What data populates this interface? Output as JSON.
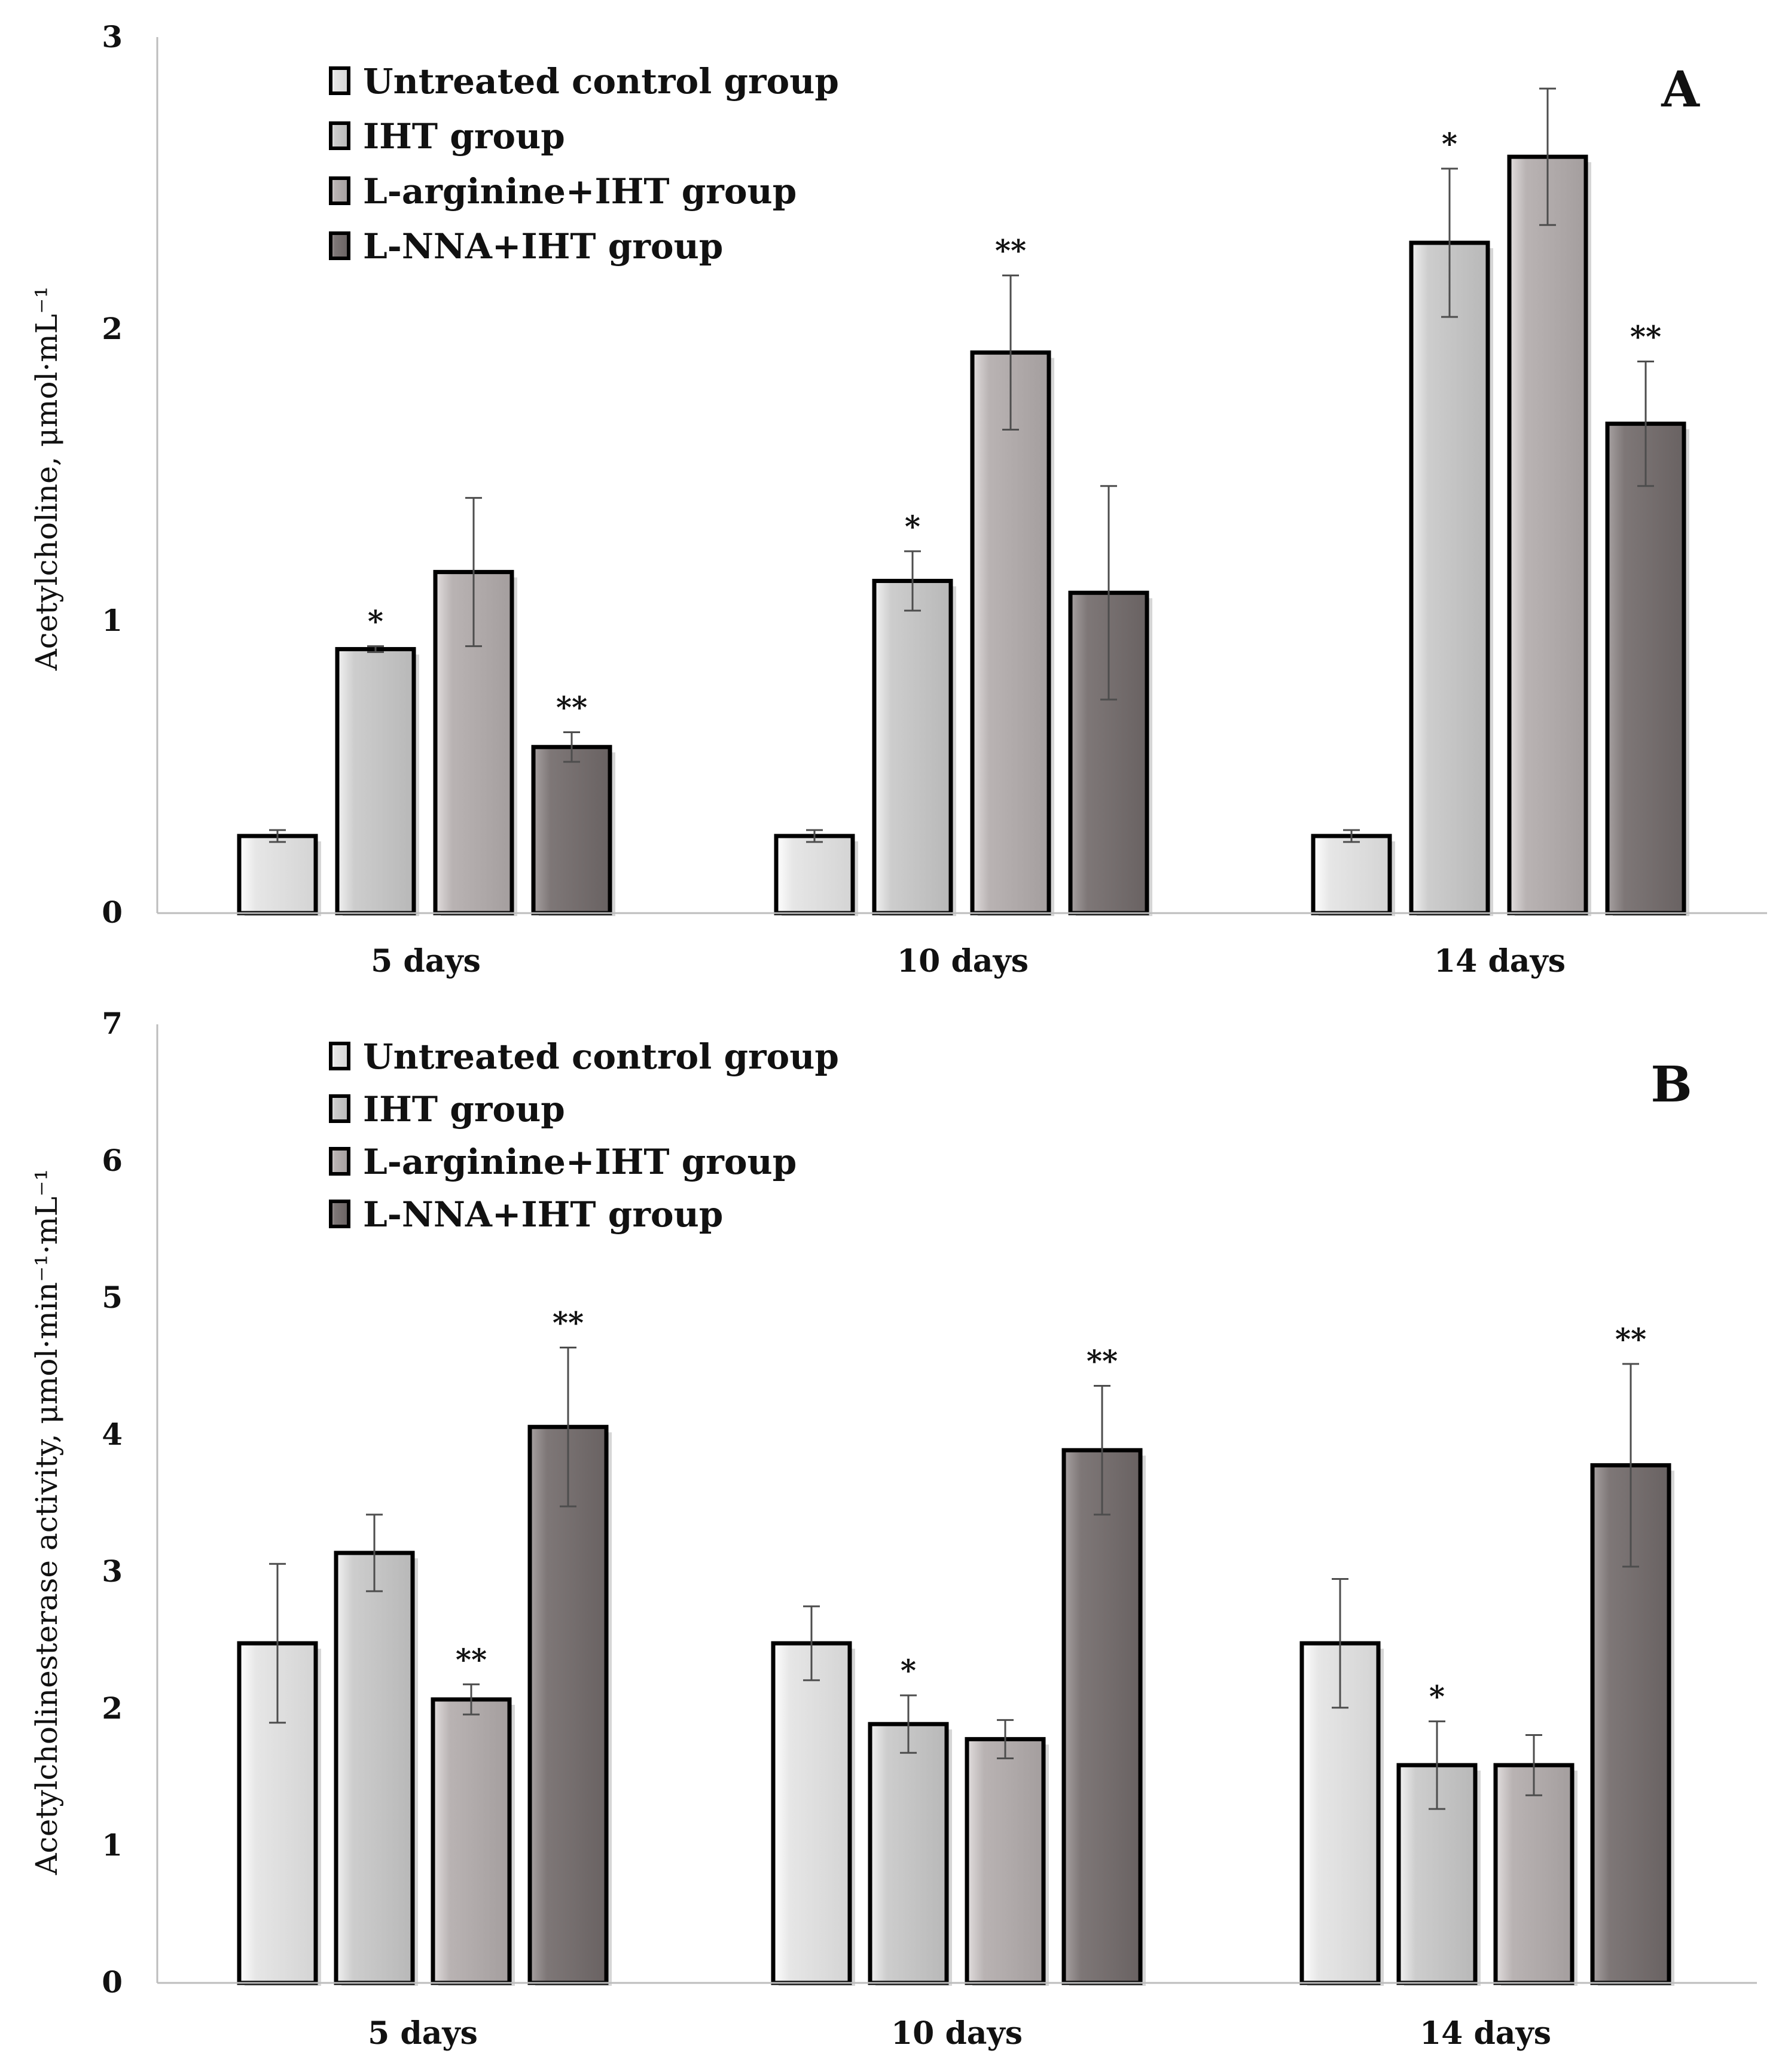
{
  "colors": {
    "untreated": "#e6e6e6",
    "iht": "#cdcdcd",
    "larginine": "#b9b3b3",
    "lnna": "#7e7777",
    "border": "#000000",
    "axis": "#bdbdbd"
  },
  "chart_data": [
    {
      "type": "bar",
      "panel_label": "A",
      "ylabel": "Acetylcholine, μmol·mL⁻¹",
      "ylim": [
        0,
        3
      ],
      "yticks": [
        "0",
        "1",
        "2",
        "3"
      ],
      "categories": [
        "5 days",
        "10 days",
        "14 days"
      ],
      "legend": [
        "Untreated control group",
        "IHT group",
        "L-arginine+IHT group",
        "L-NNA+IHT group"
      ],
      "series": [
        {
          "name": "Untreated control group",
          "values": [
            0.26,
            0.26,
            0.26
          ],
          "errors": [
            0.02,
            0.02,
            0.02
          ],
          "marks": [
            "",
            "",
            ""
          ]
        },
        {
          "name": "IHT group",
          "values": [
            0.89,
            1.12,
            2.26
          ],
          "errors": [
            0.01,
            0.1,
            0.25
          ],
          "marks": [
            "*",
            "*",
            "*"
          ]
        },
        {
          "name": "L-arginine+IHT group",
          "values": [
            1.15,
            1.89,
            2.55
          ],
          "errors": [
            0.25,
            0.26,
            0.23
          ],
          "marks": [
            "",
            "**",
            ""
          ]
        },
        {
          "name": "L-NNA+IHT group",
          "values": [
            0.56,
            1.08,
            1.65
          ],
          "errors": [
            0.05,
            0.36,
            0.21
          ],
          "marks": [
            "**",
            "",
            "**"
          ]
        }
      ]
    },
    {
      "type": "bar",
      "panel_label": "B",
      "ylabel": "Acetylcholinesterase activity, μmol·min⁻¹·mL⁻¹",
      "ylim": [
        0,
        7
      ],
      "yticks": [
        "0",
        "1",
        "2",
        "3",
        "4",
        "5",
        "6",
        "7"
      ],
      "categories": [
        "5 days",
        "10 days",
        "14 days"
      ],
      "legend": [
        "Untreated control group",
        "IHT group",
        "L-arginine+IHT group",
        "L-NNA+IHT group"
      ],
      "series": [
        {
          "name": "Untreated control group",
          "values": [
            2.48,
            2.48,
            2.48
          ],
          "errors": [
            0.58,
            0.27,
            0.47
          ],
          "marks": [
            "",
            "",
            ""
          ]
        },
        {
          "name": "IHT group",
          "values": [
            3.14,
            1.89,
            1.59
          ],
          "errors": [
            0.28,
            0.21,
            0.32
          ],
          "marks": [
            "",
            "*",
            "*"
          ]
        },
        {
          "name": "L-arginine+IHT group",
          "values": [
            2.07,
            1.78,
            1.59
          ],
          "errors": [
            0.11,
            0.14,
            0.22
          ],
          "marks": [
            "**",
            "",
            ""
          ]
        },
        {
          "name": "L-NNA+IHT group",
          "values": [
            4.06,
            3.89,
            3.78
          ],
          "errors": [
            0.58,
            0.47,
            0.74
          ],
          "marks": [
            "**",
            "**",
            "**"
          ]
        }
      ]
    }
  ]
}
